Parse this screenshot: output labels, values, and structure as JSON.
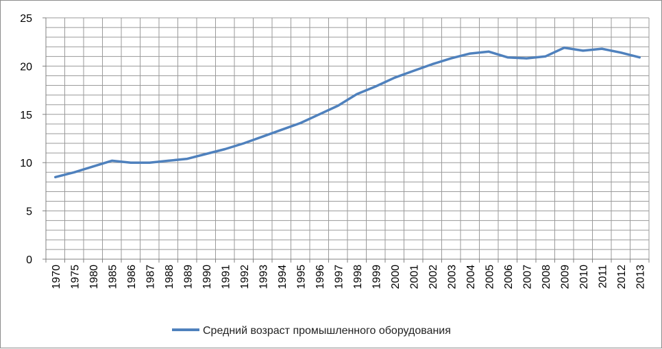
{
  "chart_data": {
    "type": "line",
    "title": "",
    "xlabel": "",
    "ylabel": "",
    "categories": [
      "1970",
      "1975",
      "1980",
      "1985",
      "1986",
      "1987",
      "1988",
      "1989",
      "1990",
      "1991",
      "1992",
      "1993",
      "1994",
      "1995",
      "1996",
      "1997",
      "1998",
      "1999",
      "2000",
      "2001",
      "2002",
      "2003",
      "2004",
      "2005",
      "2006",
      "2007",
      "2008",
      "2009",
      "2010",
      "2011",
      "2012",
      "2013"
    ],
    "series": [
      {
        "name": "Средний возраст промышленного оборудования",
        "color": "#4f81bd",
        "values": [
          8.5,
          9.0,
          9.6,
          10.2,
          10.0,
          10.0,
          10.2,
          10.4,
          10.9,
          11.4,
          12.0,
          12.7,
          13.4,
          14.1,
          15.0,
          15.9,
          17.1,
          17.9,
          18.8,
          19.5,
          20.2,
          20.8,
          21.3,
          21.5,
          20.9,
          20.8,
          21.0,
          21.9,
          21.6,
          21.8,
          21.4,
          20.9
        ]
      }
    ],
    "ylim": [
      0,
      25
    ],
    "yticks": [
      "0",
      "5",
      "10",
      "15",
      "20",
      "25"
    ],
    "grid": true,
    "legend": "bottom"
  }
}
